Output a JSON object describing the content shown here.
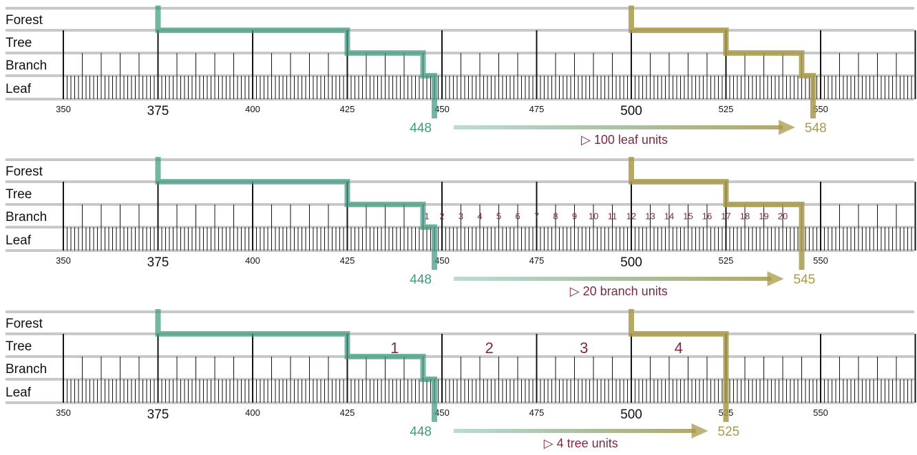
{
  "levels": [
    "Forest",
    "Tree",
    "Branch",
    "Leaf"
  ],
  "axis": {
    "start": 350,
    "end": 598,
    "labels": [
      350,
      375,
      400,
      425,
      450,
      475,
      500,
      525,
      550
    ],
    "large_labels": [
      375,
      500
    ]
  },
  "colors": {
    "start": "#3f9a7f",
    "end": "#a89a4a",
    "text": "#7a2848",
    "band": "#c8c8c8",
    "tick": "#111111"
  },
  "panels": [
    {
      "start": {
        "value": 448,
        "label": "448",
        "path_values": [
          375,
          425,
          445,
          448
        ]
      },
      "end": {
        "value": 548,
        "label": "548",
        "path_values": [
          500,
          525,
          545,
          548
        ],
        "stop_level": "Leaf"
      },
      "delta": {
        "label": "100 leaf units",
        "glyph": "▷"
      },
      "numbers": []
    },
    {
      "start": {
        "value": 448,
        "label": "448",
        "path_values": [
          375,
          425,
          445,
          448
        ]
      },
      "end": {
        "value": 545,
        "label": "545",
        "path_values": [
          500,
          525,
          545
        ],
        "stop_level": "Branch"
      },
      "delta": {
        "label": "20 branch units",
        "glyph": "▷"
      },
      "numbers": {
        "level": "Branch",
        "items": [
          "1",
          "2",
          "3",
          "4",
          "5",
          "6",
          "7",
          "8",
          "9",
          "10",
          "11",
          "12",
          "13",
          "14",
          "15",
          "16",
          "17",
          "18",
          "19",
          "20"
        ],
        "values": [
          446,
          450,
          455,
          460,
          465,
          470,
          475,
          480,
          485,
          490,
          495,
          500,
          505,
          510,
          515,
          520,
          525,
          530,
          535,
          540
        ]
      }
    },
    {
      "start": {
        "value": 448,
        "label": "448",
        "path_values": [
          375,
          425,
          445,
          448
        ]
      },
      "end": {
        "value": 525,
        "label": "525",
        "path_values": [
          500,
          525
        ],
        "stop_level": "Tree"
      },
      "delta": {
        "label": "4 tree units",
        "glyph": "▷"
      },
      "numbers": {
        "level": "Tree",
        "items": [
          "1",
          "2",
          "3",
          "4"
        ],
        "values": [
          437.5,
          462.5,
          487.5,
          512.5
        ]
      }
    }
  ]
}
